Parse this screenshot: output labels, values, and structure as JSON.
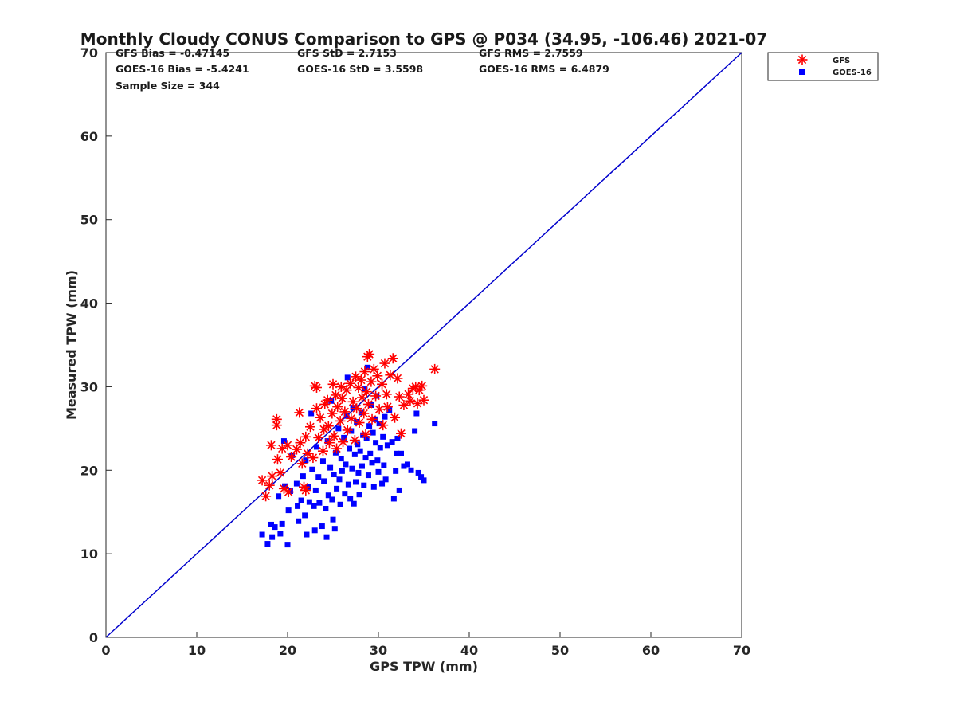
{
  "chart_data": {
    "type": "scatter",
    "title": "Monthly Cloudy CONUS Comparison to GPS @ P034 (34.95, -106.46) 2021-07",
    "xlabel": "GPS TPW (mm)",
    "ylabel": "Measured TPW (mm)",
    "xlim": [
      0,
      70
    ],
    "ylim": [
      0,
      70
    ],
    "xticks": [
      "0",
      "10",
      "20",
      "30",
      "40",
      "50",
      "60",
      "70"
    ],
    "yticks": [
      "0",
      "10",
      "20",
      "30",
      "40",
      "50",
      "60",
      "70"
    ],
    "grid": false,
    "legend_position": "top-right outside",
    "stats": {
      "gfs_bias": "GFS Bias = -0.47145",
      "gfs_std": "GFS StD = 2.7153",
      "gfs_rms": "GFS RMS = 2.7559",
      "goes_bias": "GOES-16 Bias = -5.4241",
      "goes_std": "GOES-16 StD = 3.5598",
      "goes_rms": "GOES-16 RMS = 6.4879",
      "sample_size": "Sample Size = 344"
    },
    "reference_line": {
      "x": [
        0,
        70
      ],
      "y": [
        0,
        70
      ],
      "color": "#0000cc"
    },
    "series": [
      {
        "name": "GFS",
        "marker": "asterisk",
        "color": "#ff0000",
        "points": [
          [
            17.2,
            18.8
          ],
          [
            17.6,
            16.9
          ],
          [
            18.0,
            18.2
          ],
          [
            18.3,
            19.3
          ],
          [
            18.2,
            23.0
          ],
          [
            18.8,
            25.4
          ],
          [
            18.8,
            26.1
          ],
          [
            18.9,
            21.3
          ],
          [
            19.2,
            19.7
          ],
          [
            19.4,
            22.6
          ],
          [
            19.6,
            17.8
          ],
          [
            20.1,
            17.4
          ],
          [
            20.0,
            23.0
          ],
          [
            20.4,
            21.6
          ],
          [
            21.0,
            22.5
          ],
          [
            21.3,
            26.9
          ],
          [
            21.4,
            23.3
          ],
          [
            21.6,
            20.8
          ],
          [
            21.8,
            18.0
          ],
          [
            22.0,
            17.6
          ],
          [
            22.0,
            24.0
          ],
          [
            22.2,
            22.0
          ],
          [
            22.5,
            25.2
          ],
          [
            22.8,
            21.5
          ],
          [
            23.0,
            30.1
          ],
          [
            23.2,
            29.9
          ],
          [
            23.2,
            27.4
          ],
          [
            23.4,
            23.9
          ],
          [
            23.6,
            26.3
          ],
          [
            23.9,
            22.3
          ],
          [
            24.0,
            24.9
          ],
          [
            24.1,
            27.9
          ],
          [
            24.4,
            28.4
          ],
          [
            24.5,
            25.3
          ],
          [
            24.6,
            23.3
          ],
          [
            24.9,
            26.8
          ],
          [
            25.0,
            30.3
          ],
          [
            25.1,
            24.1
          ],
          [
            25.3,
            29.0
          ],
          [
            25.4,
            22.6
          ],
          [
            25.5,
            27.6
          ],
          [
            25.8,
            25.9
          ],
          [
            25.9,
            30.0
          ],
          [
            26.0,
            28.6
          ],
          [
            26.1,
            23.4
          ],
          [
            26.3,
            27.0
          ],
          [
            26.5,
            29.6
          ],
          [
            26.6,
            24.8
          ],
          [
            26.9,
            30.4
          ],
          [
            27.0,
            26.2
          ],
          [
            27.2,
            28.2
          ],
          [
            27.4,
            23.6
          ],
          [
            27.5,
            31.2
          ],
          [
            27.6,
            27.4
          ],
          [
            27.8,
            29.9
          ],
          [
            27.9,
            25.7
          ],
          [
            28.1,
            30.8
          ],
          [
            28.2,
            28.7
          ],
          [
            28.4,
            26.8
          ],
          [
            28.5,
            31.8
          ],
          [
            28.6,
            24.3
          ],
          [
            28.7,
            29.4
          ],
          [
            28.8,
            33.6
          ],
          [
            28.9,
            27.9
          ],
          [
            29.0,
            33.9
          ],
          [
            29.2,
            30.6
          ],
          [
            29.3,
            26.1
          ],
          [
            29.5,
            32.1
          ],
          [
            29.7,
            28.9
          ],
          [
            29.9,
            31.3
          ],
          [
            30.1,
            27.3
          ],
          [
            30.4,
            30.3
          ],
          [
            30.5,
            25.4
          ],
          [
            30.7,
            32.8
          ],
          [
            30.9,
            29.1
          ],
          [
            31.0,
            27.6
          ],
          [
            31.3,
            31.4
          ],
          [
            31.6,
            33.4
          ],
          [
            31.8,
            26.3
          ],
          [
            32.1,
            31.0
          ],
          [
            32.3,
            28.8
          ],
          [
            32.5,
            24.4
          ],
          [
            32.8,
            27.8
          ],
          [
            33.3,
            29.1
          ],
          [
            33.5,
            28.3
          ],
          [
            33.8,
            29.8
          ],
          [
            34.1,
            30.0
          ],
          [
            34.3,
            28.0
          ],
          [
            34.5,
            29.6
          ],
          [
            34.8,
            30.1
          ],
          [
            35.0,
            28.4
          ],
          [
            36.2,
            32.1
          ]
        ]
      },
      {
        "name": "GOES-16",
        "marker": "square",
        "color": "#0000ff",
        "points": [
          [
            17.2,
            12.3
          ],
          [
            17.8,
            11.2
          ],
          [
            18.2,
            13.5
          ],
          [
            18.3,
            12.0
          ],
          [
            18.6,
            13.2
          ],
          [
            19.0,
            16.9
          ],
          [
            19.2,
            12.4
          ],
          [
            19.4,
            13.6
          ],
          [
            19.6,
            23.5
          ],
          [
            19.7,
            18.1
          ],
          [
            20.0,
            11.1
          ],
          [
            20.1,
            15.2
          ],
          [
            20.3,
            17.5
          ],
          [
            20.5,
            21.8
          ],
          [
            21.0,
            18.4
          ],
          [
            21.1,
            15.7
          ],
          [
            21.2,
            13.9
          ],
          [
            21.5,
            16.4
          ],
          [
            21.7,
            19.3
          ],
          [
            21.9,
            14.6
          ],
          [
            22.0,
            21.2
          ],
          [
            22.1,
            12.3
          ],
          [
            22.3,
            18.0
          ],
          [
            22.4,
            16.2
          ],
          [
            22.6,
            26.8
          ],
          [
            22.7,
            20.1
          ],
          [
            22.9,
            15.7
          ],
          [
            23.0,
            12.8
          ],
          [
            23.1,
            17.6
          ],
          [
            23.2,
            22.8
          ],
          [
            23.4,
            19.2
          ],
          [
            23.5,
            16.1
          ],
          [
            23.8,
            13.3
          ],
          [
            23.9,
            21.1
          ],
          [
            24.0,
            18.7
          ],
          [
            24.2,
            15.4
          ],
          [
            24.3,
            12.0
          ],
          [
            24.4,
            23.5
          ],
          [
            24.5,
            17.0
          ],
          [
            24.7,
            20.3
          ],
          [
            24.8,
            28.3
          ],
          [
            24.9,
            16.5
          ],
          [
            25.0,
            14.1
          ],
          [
            25.1,
            19.5
          ],
          [
            25.2,
            13.0
          ],
          [
            25.3,
            22.1
          ],
          [
            25.4,
            17.8
          ],
          [
            25.6,
            25.0
          ],
          [
            25.7,
            18.9
          ],
          [
            25.8,
            15.9
          ],
          [
            25.9,
            21.4
          ],
          [
            26.0,
            19.9
          ],
          [
            26.2,
            23.9
          ],
          [
            26.3,
            17.2
          ],
          [
            26.4,
            20.7
          ],
          [
            26.5,
            26.5
          ],
          [
            26.6,
            31.1
          ],
          [
            26.7,
            18.3
          ],
          [
            26.8,
            22.6
          ],
          [
            26.9,
            16.6
          ],
          [
            27.0,
            24.7
          ],
          [
            27.1,
            20.2
          ],
          [
            27.2,
            27.5
          ],
          [
            27.3,
            16.0
          ],
          [
            27.4,
            21.9
          ],
          [
            27.5,
            18.6
          ],
          [
            27.6,
            25.8
          ],
          [
            27.7,
            23.1
          ],
          [
            27.8,
            19.7
          ],
          [
            27.9,
            17.1
          ],
          [
            28.0,
            22.3
          ],
          [
            28.1,
            26.9
          ],
          [
            28.2,
            20.5
          ],
          [
            28.3,
            24.2
          ],
          [
            28.4,
            18.2
          ],
          [
            28.5,
            29.7
          ],
          [
            28.6,
            21.5
          ],
          [
            28.7,
            23.8
          ],
          [
            28.8,
            32.3
          ],
          [
            28.9,
            19.4
          ],
          [
            29.0,
            25.3
          ],
          [
            29.1,
            22.0
          ],
          [
            29.2,
            27.8
          ],
          [
            29.3,
            20.9
          ],
          [
            29.4,
            24.5
          ],
          [
            29.5,
            18.0
          ],
          [
            29.6,
            26.1
          ],
          [
            29.7,
            23.3
          ],
          [
            29.8,
            28.9
          ],
          [
            29.9,
            21.2
          ],
          [
            30.0,
            19.8
          ],
          [
            30.1,
            25.6
          ],
          [
            30.2,
            22.7
          ],
          [
            30.4,
            18.4
          ],
          [
            30.5,
            24.0
          ],
          [
            30.6,
            20.6
          ],
          [
            30.7,
            26.4
          ],
          [
            30.8,
            18.9
          ],
          [
            31.0,
            23.0
          ],
          [
            31.2,
            27.2
          ],
          [
            31.5,
            23.4
          ],
          [
            31.7,
            16.6
          ],
          [
            31.9,
            19.9
          ],
          [
            32.0,
            22.0
          ],
          [
            32.1,
            23.8
          ],
          [
            32.3,
            17.6
          ],
          [
            32.5,
            22.0
          ],
          [
            32.8,
            20.5
          ],
          [
            33.2,
            20.7
          ],
          [
            33.6,
            20.0
          ],
          [
            34.0,
            24.7
          ],
          [
            34.2,
            26.8
          ],
          [
            34.4,
            19.7
          ],
          [
            34.7,
            19.2
          ],
          [
            35.0,
            18.8
          ],
          [
            36.2,
            25.6
          ]
        ]
      }
    ]
  }
}
